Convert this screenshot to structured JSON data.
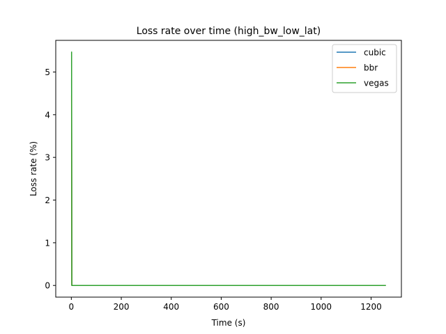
{
  "chart_data": {
    "type": "line",
    "title": "Loss rate over time (high_bw_low_lat)",
    "xlabel": "Time (s)",
    "ylabel": "Loss rate (%)",
    "xlim": [
      -62.35,
      1321.35
    ],
    "ylim": [
      -0.2734,
      5.7414
    ],
    "xticks": [
      0,
      200,
      400,
      600,
      800,
      1000,
      1200
    ],
    "yticks": [
      0,
      1,
      2,
      3,
      4,
      5
    ],
    "grid": false,
    "legend_position": "top-right",
    "series": [
      {
        "name": "cubic",
        "color": "#1f77b4",
        "x": [
          0,
          1,
          2,
          1259
        ],
        "y": [
          4.85,
          4.85,
          0,
          0
        ]
      },
      {
        "name": "bbr",
        "color": "#ff7f0e",
        "x": [
          0,
          1,
          2,
          1259
        ],
        "y": [
          4.45,
          4.45,
          0,
          0
        ]
      },
      {
        "name": "vegas",
        "color": "#2ca02c",
        "x": [
          0,
          1,
          2,
          1259
        ],
        "y": [
          5.47,
          5.47,
          0,
          0
        ]
      }
    ]
  }
}
